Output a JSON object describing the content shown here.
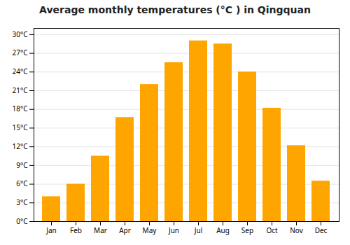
{
  "chart_data": {
    "type": "bar",
    "title": "Average monthly temperatures (°C ) in Qingquan",
    "categories": [
      "Jan",
      "Feb",
      "Mar",
      "Apr",
      "May",
      "Jun",
      "Jul",
      "Aug",
      "Sep",
      "Oct",
      "Nov",
      "Dec"
    ],
    "values": [
      4.0,
      6.0,
      10.5,
      16.7,
      22.0,
      25.5,
      29.0,
      28.5,
      24.0,
      18.2,
      12.2,
      6.5
    ],
    "color": "#FFA500",
    "ylim": [
      0,
      31
    ],
    "yticks": [
      {
        "value": 0,
        "label": "0°C"
      },
      {
        "value": 3,
        "label": "3°C"
      },
      {
        "value": 6,
        "label": "6°C"
      },
      {
        "value": 9,
        "label": "9°C"
      },
      {
        "value": 12,
        "label": "12°C"
      },
      {
        "value": 15,
        "label": "15°C"
      },
      {
        "value": 18,
        "label": "18°C"
      },
      {
        "value": 21,
        "label": "21°C"
      },
      {
        "value": 24,
        "label": "24°C"
      },
      {
        "value": 27,
        "label": "27°C"
      },
      {
        "value": 30,
        "label": "30°C"
      }
    ],
    "grid": true
  }
}
